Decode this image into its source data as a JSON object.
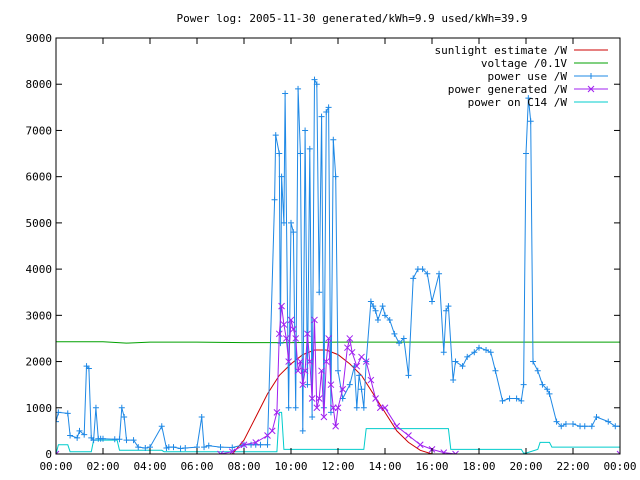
{
  "chart_data": {
    "type": "line",
    "title": "Power log: 2005-11-30 generated/kWh=9.9 used/kWh=39.9",
    "xlabel": "",
    "ylabel": "",
    "xlim": [
      0,
      24
    ],
    "ylim": [
      0,
      9000
    ],
    "legend_position": "top-right",
    "grid": false,
    "x_tick_labels": [
      "00:00",
      "02:00",
      "04:00",
      "06:00",
      "08:00",
      "10:00",
      "12:00",
      "14:00",
      "16:00",
      "18:00",
      "20:00",
      "22:00",
      "00:00"
    ],
    "y_tick_labels": [
      "0",
      "1000",
      "2000",
      "3000",
      "4000",
      "5000",
      "6000",
      "7000",
      "8000",
      "9000"
    ],
    "series": [
      {
        "name": "sunlight estimate /W",
        "color": "#cc0000",
        "marker": "none",
        "x": [
          7.5,
          8.0,
          8.5,
          9.0,
          9.5,
          10.0,
          10.5,
          11.0,
          11.5,
          12.0,
          12.5,
          13.0,
          13.5,
          14.0,
          14.5,
          15.0,
          15.5,
          16.0
        ],
        "y": [
          0,
          300,
          800,
          1300,
          1700,
          1950,
          2150,
          2250,
          2250,
          2150,
          1950,
          1700,
          1300,
          900,
          500,
          250,
          80,
          0
        ]
      },
      {
        "name": "voltage /0.1V",
        "color": "#00a000",
        "marker": "none",
        "x": [
          0,
          2,
          3,
          4,
          6,
          8,
          10,
          12,
          14,
          16,
          18,
          20,
          22,
          24
        ],
        "y": [
          2430,
          2430,
          2400,
          2420,
          2420,
          2410,
          2410,
          2420,
          2420,
          2420,
          2420,
          2420,
          2420,
          2420
        ]
      },
      {
        "name": "power use /W",
        "color": "#1e88e5",
        "marker": "plus",
        "x": [
          0.0,
          0.1,
          0.5,
          0.6,
          0.9,
          1.0,
          1.2,
          1.3,
          1.4,
          1.5,
          1.6,
          1.7,
          1.8,
          1.9,
          2.0,
          2.5,
          2.7,
          2.8,
          2.9,
          3.0,
          3.3,
          3.5,
          3.8,
          4.0,
          4.5,
          4.7,
          4.8,
          5.0,
          5.3,
          5.5,
          6.0,
          6.2,
          6.3,
          6.5,
          7.0,
          7.5,
          8.0,
          8.3,
          8.5,
          8.7,
          9.0,
          9.3,
          9.35,
          9.5,
          9.55,
          9.6,
          9.7,
          9.75,
          9.9,
          10.0,
          10.1,
          10.2,
          10.3,
          10.4,
          10.5,
          10.6,
          10.7,
          10.8,
          10.9,
          11.0,
          11.1,
          11.2,
          11.3,
          11.4,
          11.5,
          11.6,
          11.7,
          11.8,
          11.9,
          12.0,
          12.2,
          12.5,
          12.7,
          12.8,
          12.9,
          13.0,
          13.1,
          13.2,
          13.4,
          13.5,
          13.6,
          13.7,
          13.9,
          14.0,
          14.2,
          14.4,
          14.6,
          14.8,
          15.0,
          15.2,
          15.4,
          15.6,
          15.8,
          16.0,
          16.3,
          16.5,
          16.6,
          16.7,
          16.9,
          17.0,
          17.3,
          17.5,
          17.8,
          18.0,
          18.3,
          18.5,
          18.7,
          19.0,
          19.3,
          19.6,
          19.8,
          19.9,
          20.0,
          20.1,
          20.2,
          20.3,
          20.5,
          20.7,
          20.9,
          21.0,
          21.3,
          21.5,
          21.7,
          22.0,
          22.3,
          22.5,
          22.8,
          23.0,
          23.5,
          23.8,
          24.0
        ],
        "y": [
          700,
          900,
          880,
          400,
          350,
          500,
          420,
          1900,
          1850,
          350,
          300,
          1000,
          330,
          330,
          330,
          320,
          320,
          1000,
          800,
          300,
          300,
          150,
          130,
          150,
          600,
          130,
          150,
          150,
          120,
          130,
          150,
          800,
          150,
          180,
          150,
          140,
          200,
          200,
          200,
          200,
          200,
          5500,
          6900,
          6500,
          2400,
          6000,
          5000,
          7800,
          1000,
          5000,
          4800,
          1000,
          7900,
          6500,
          500,
          7000,
          1500,
          6600,
          800,
          8100,
          8000,
          3500,
          7300,
          1000,
          7400,
          7500,
          900,
          6800,
          6000,
          1800,
          1200,
          1500,
          1900,
          1000,
          1700,
          1400,
          1000,
          2000,
          3300,
          3200,
          3100,
          2900,
          3200,
          3000,
          2900,
          2600,
          2400,
          2500,
          1700,
          3800,
          4000,
          4000,
          3900,
          3300,
          3900,
          2200,
          3100,
          3200,
          1600,
          2000,
          1900,
          2100,
          2200,
          2300,
          2250,
          2200,
          1800,
          1150,
          1200,
          1200,
          1150,
          1500,
          6500,
          7700,
          7200,
          2000,
          1800,
          1500,
          1400,
          1300,
          700,
          600,
          650,
          650,
          600,
          600,
          600,
          800,
          700,
          600,
          600
        ]
      },
      {
        "name": "power generated /W",
        "color": "#a020f0",
        "marker": "cross",
        "x": [
          0,
          7.0,
          7.5,
          8.0,
          8.5,
          9.0,
          9.2,
          9.4,
          9.5,
          9.6,
          9.7,
          9.8,
          9.9,
          10.0,
          10.1,
          10.2,
          10.3,
          10.4,
          10.5,
          10.6,
          10.7,
          10.8,
          10.9,
          11.0,
          11.1,
          11.2,
          11.3,
          11.4,
          11.5,
          11.6,
          11.7,
          11.8,
          11.9,
          12.0,
          12.2,
          12.4,
          12.5,
          12.6,
          12.8,
          13.0,
          13.2,
          13.4,
          13.6,
          13.8,
          14.0,
          14.5,
          15.0,
          15.5,
          16.0,
          16.5,
          17.0,
          24.0
        ],
        "y": [
          0,
          0,
          50,
          200,
          250,
          400,
          500,
          900,
          2600,
          3200,
          2800,
          2500,
          2000,
          2900,
          2700,
          2500,
          1800,
          2000,
          1500,
          1800,
          2600,
          2000,
          1200,
          2900,
          1000,
          1200,
          1800,
          800,
          2000,
          2500,
          1500,
          1000,
          600,
          1000,
          1400,
          2300,
          2500,
          2200,
          1900,
          2100,
          2000,
          1600,
          1200,
          1000,
          1000,
          600,
          400,
          200,
          100,
          30,
          0,
          0
        ]
      },
      {
        "name": "power on C14 /W",
        "color": "#00cccc",
        "marker": "none",
        "x": [
          0,
          0.1,
          0.5,
          0.6,
          1.5,
          1.6,
          2.6,
          2.7,
          4.5,
          4.6,
          9.4,
          9.5,
          9.6,
          9.7,
          13.1,
          13.2,
          16.7,
          16.8,
          19.8,
          19.9,
          20.0,
          20.5,
          20.6,
          21.0,
          21.1,
          24.0
        ],
        "y": [
          0,
          200,
          200,
          50,
          50,
          300,
          300,
          80,
          80,
          50,
          50,
          900,
          900,
          100,
          100,
          550,
          550,
          100,
          100,
          20,
          20,
          100,
          250,
          250,
          150,
          150
        ]
      }
    ]
  }
}
